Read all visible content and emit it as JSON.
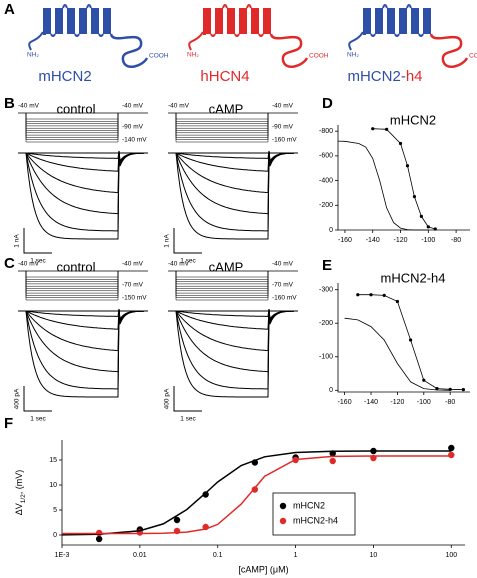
{
  "panel_labels": [
    "A",
    "B",
    "C",
    "D",
    "E",
    "F"
  ],
  "channels": [
    {
      "name": [
        {
          "text": "mHCN2",
          "color": "#2e4fa8"
        }
      ],
      "nh2": "NH₂",
      "cooh": "COOH",
      "core_color": "#2e4fa8",
      "tail_color": "#2e4fa8"
    },
    {
      "name": [
        {
          "text": "hHCN4",
          "color": "#e02a2a"
        }
      ],
      "nh2": "NH₂",
      "cooh": "COOH",
      "core_color": "#e02a2a",
      "tail_color": "#e02a2a"
    },
    {
      "name": [
        {
          "text": "mHCN2-",
          "color": "#2e4fa8"
        },
        {
          "text": "h4",
          "color": "#e02a2a"
        }
      ],
      "nh2": "NH₂",
      "cooh": "COOH",
      "core_color": "#2e4fa8",
      "tail_color": "#e02a2a"
    }
  ],
  "recordings": [
    [
      {
        "condition": "control",
        "holding": "-40 mV",
        "return": "-40 mV",
        "step_mid": "-90 mV",
        "step_last": "-140 mV",
        "current_scale": "1 nA",
        "time_scale": "1 sec"
      },
      {
        "condition": "cAMP",
        "holding": "-40 mV",
        "return": "-40 mV",
        "step_mid": "-90 mV",
        "step_last": "-160 mV",
        "current_scale": "1 nA",
        "time_scale": "1 sec"
      }
    ],
    [
      {
        "condition": "control",
        "holding": "-40 mV",
        "return": "-40 mV",
        "step_mid": "-70 mV",
        "step_last": "-150 mV",
        "current_scale": "400 pA",
        "time_scale": "1 sec"
      },
      {
        "condition": "cAMP",
        "holding": "-40 mV",
        "return": "-40 mV",
        "step_mid": "-70 mV",
        "step_last": "-160 mV",
        "current_scale": "400 pA",
        "time_scale": "1 sec"
      }
    ]
  ],
  "chart_data": [
    {
      "type": "line",
      "title": "mHCN2",
      "series": [
        {
          "color": "#000000",
          "markers": true,
          "line": true,
          "x": [
            -140,
            -130,
            -120,
            -115,
            -110,
            -105,
            -100,
            -95
          ],
          "values": [
            -820,
            -815,
            -700,
            -520,
            -270,
            -110,
            -25,
            -8
          ]
        },
        {
          "color": "#000000",
          "markers": false,
          "line": true,
          "x": [
            -165,
            -160,
            -150,
            -145,
            -140,
            -135,
            -130,
            -125,
            -120,
            -115,
            -110,
            -100
          ],
          "values": [
            -720,
            -718,
            -700,
            -670,
            -580,
            -400,
            -180,
            -60,
            -15,
            -3,
            0,
            0
          ]
        }
      ],
      "xlim": [
        -165,
        -70
      ],
      "xticks": [
        -160,
        -140,
        -120,
        -100,
        -80
      ],
      "ylim": [
        0,
        -850
      ],
      "yticks": [
        0,
        -200,
        -400,
        -600,
        -800
      ]
    },
    {
      "type": "line",
      "title": "mHCN2-h4",
      "series": [
        {
          "color": "#000000",
          "markers": true,
          "line": true,
          "x": [
            -150,
            -140,
            -130,
            -120,
            -110,
            -100,
            -90,
            -80,
            -70
          ],
          "values": [
            -285,
            -285,
            -283,
            -265,
            -150,
            -30,
            -5,
            -3,
            -2
          ]
        },
        {
          "color": "#000000",
          "markers": false,
          "line": true,
          "x": [
            -160,
            -150,
            -140,
            -130,
            -120,
            -110,
            -100,
            -90,
            -80
          ],
          "values": [
            -215,
            -210,
            -190,
            -150,
            -80,
            -25,
            -5,
            -1,
            0
          ]
        }
      ],
      "xlim": [
        -165,
        -65
      ],
      "xticks": [
        -160,
        -140,
        -120,
        -100,
        -80
      ],
      "ylim": [
        5,
        -320
      ],
      "yticks": [
        0,
        -100,
        -200,
        -300
      ]
    },
    {
      "type": "scatter",
      "log_x": true,
      "series": [
        {
          "name": "mHCN2",
          "color": "#000000",
          "markers": true,
          "x": [
            0.003,
            0.01,
            0.03,
            0.07,
            0.3,
            1,
            3,
            10,
            100
          ],
          "values": [
            -0.8,
            1.1,
            3.0,
            8.1,
            14.5,
            15.5,
            16.3,
            16.8,
            17.4
          ]
        },
        {
          "name": "mHCN2-h4",
          "color": "#e02a2a",
          "markers": true,
          "x": [
            0.003,
            0.01,
            0.03,
            0.07,
            0.3,
            1,
            3,
            10,
            100
          ],
          "values": [
            0.4,
            0.5,
            0.8,
            1.6,
            9.1,
            15.0,
            14.8,
            15.4,
            16.0
          ]
        },
        {
          "color": "#000000",
          "markers": false,
          "line": true,
          "x": [
            0.001,
            0.003,
            0.01,
            0.02,
            0.04,
            0.07,
            0.1,
            0.2,
            0.4,
            1,
            3,
            10,
            100
          ],
          "values": [
            0.03,
            0.15,
            0.86,
            2.23,
            5.07,
            8.4,
            10.6,
            13.9,
            15.65,
            16.5,
            16.75,
            16.8,
            16.8
          ]
        },
        {
          "color": "#e02a2a",
          "markers": false,
          "line": true,
          "x": [
            0.001,
            0.003,
            0.01,
            0.02,
            0.04,
            0.07,
            0.1,
            0.2,
            0.4,
            1,
            3,
            10,
            100
          ],
          "values": [
            0.3,
            0.3,
            0.31,
            0.36,
            0.57,
            1.19,
            2.12,
            6.18,
            11.73,
            15.1,
            15.73,
            15.8,
            15.8
          ]
        }
      ],
      "xlim": [
        0.001,
        150
      ],
      "xticks": [
        {
          "value": 0.001,
          "label": "1E-3"
        },
        0.01,
        0.1,
        1,
        10,
        100
      ],
      "ylim": [
        -2,
        19
      ],
      "yticks": [
        0,
        5,
        10,
        15
      ],
      "x_label": "[cAMP] (μM)",
      "y_label": {
        "main": "ΔV",
        "sub": "1/2",
        "rest": ", (mV)"
      },
      "legend": "lower-right"
    }
  ]
}
